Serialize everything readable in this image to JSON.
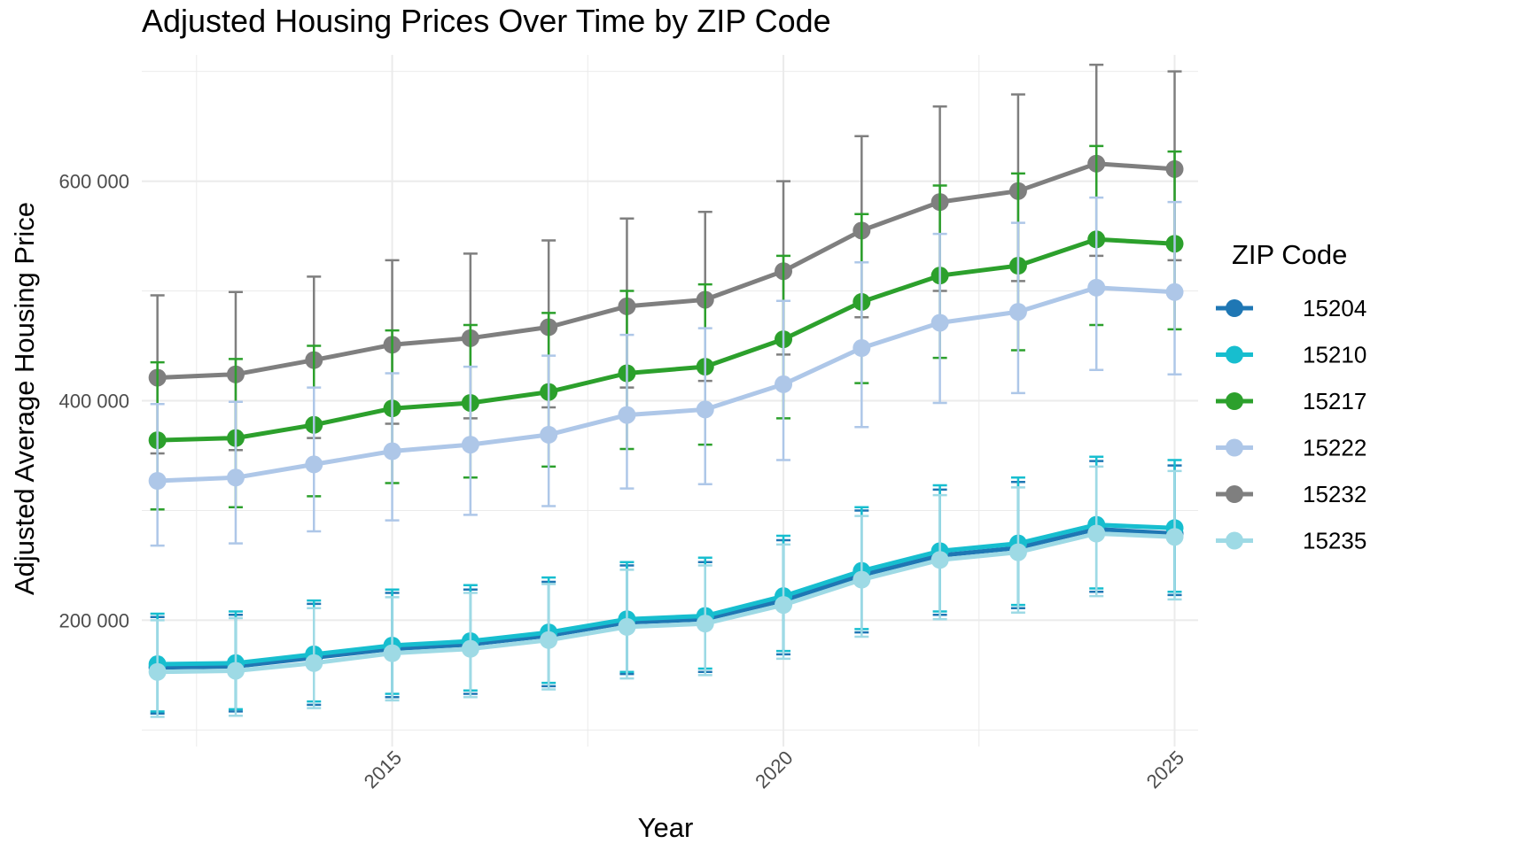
{
  "chart_data": {
    "type": "line",
    "title": "Adjusted Housing Prices Over Time by ZIP Code",
    "xlabel": "Year",
    "ylabel": "Adjusted Average Housing Price",
    "xlim": [
      2011.8,
      2025.3
    ],
    "ylim": [
      85000,
      715000
    ],
    "x_ticks": [
      2015,
      2020,
      2025
    ],
    "x_tick_labels": [
      "2015",
      "2020",
      "2025"
    ],
    "y_ticks": [
      200000,
      400000,
      600000
    ],
    "y_tick_labels": [
      "200 000",
      "400 000",
      "600 000"
    ],
    "grid": true,
    "legend": {
      "title": "ZIP Code",
      "position": "right"
    },
    "x": [
      2012,
      2013,
      2014,
      2015,
      2016,
      2017,
      2018,
      2019,
      2020,
      2021,
      2022,
      2023,
      2024,
      2025
    ],
    "series": [
      {
        "name": "15204",
        "color": "#1f77b4",
        "values": [
          157000,
          158000,
          166000,
          174000,
          178000,
          186000,
          198000,
          201000,
          218000,
          241000,
          259000,
          266000,
          283000,
          279000
        ],
        "error_low": [
          115000,
          117000,
          123000,
          130000,
          133000,
          140000,
          151000,
          153000,
          169000,
          189000,
          205000,
          211000,
          226000,
          223000
        ],
        "error_high": [
          203000,
          205000,
          215000,
          225000,
          228000,
          235000,
          250000,
          253000,
          273000,
          300000,
          319000,
          326000,
          345000,
          341000
        ]
      },
      {
        "name": "15210",
        "color": "#17becf",
        "values": [
          160000,
          161000,
          169000,
          177000,
          181000,
          189000,
          201000,
          204000,
          222000,
          245000,
          263000,
          270000,
          287000,
          284000
        ],
        "error_low": [
          117000,
          119000,
          126000,
          133000,
          136000,
          143000,
          153000,
          156000,
          172000,
          192000,
          208000,
          214000,
          229000,
          226000
        ],
        "error_high": [
          206000,
          208000,
          218000,
          228000,
          232000,
          239000,
          253000,
          257000,
          277000,
          303000,
          323000,
          330000,
          349000,
          346000
        ]
      },
      {
        "name": "15217",
        "color": "#2ca02c",
        "values": [
          364000,
          366000,
          378000,
          393000,
          398000,
          408000,
          425000,
          431000,
          456000,
          490000,
          514000,
          523000,
          547000,
          543000
        ],
        "error_low": [
          301000,
          303000,
          313000,
          325000,
          330000,
          340000,
          356000,
          360000,
          384000,
          416000,
          439000,
          446000,
          469000,
          465000
        ],
        "error_high": [
          435000,
          438000,
          450000,
          464000,
          469000,
          480000,
          500000,
          506000,
          532000,
          570000,
          596000,
          607000,
          632000,
          627000
        ]
      },
      {
        "name": "15222",
        "color": "#aec7e8",
        "values": [
          327000,
          330000,
          342000,
          354000,
          360000,
          369000,
          387000,
          392000,
          415000,
          448000,
          471000,
          481000,
          503000,
          499000
        ],
        "error_low": [
          268000,
          270000,
          281000,
          291000,
          296000,
          304000,
          320000,
          324000,
          346000,
          376000,
          398000,
          407000,
          428000,
          424000
        ],
        "error_high": [
          397000,
          399000,
          412000,
          425000,
          431000,
          441000,
          460000,
          466000,
          491000,
          526000,
          552000,
          562000,
          585000,
          581000
        ]
      },
      {
        "name": "15232",
        "color": "#7f7f7f",
        "values": [
          421000,
          424000,
          437000,
          451000,
          457000,
          467000,
          486000,
          492000,
          518000,
          555000,
          581000,
          591000,
          616000,
          611000
        ],
        "error_low": [
          352000,
          355000,
          366000,
          379000,
          384000,
          394000,
          412000,
          418000,
          442000,
          476000,
          500000,
          509000,
          532000,
          528000
        ],
        "error_high": [
          496000,
          499000,
          513000,
          528000,
          534000,
          546000,
          566000,
          572000,
          600000,
          641000,
          668000,
          679000,
          706000,
          700000
        ]
      },
      {
        "name": "15235",
        "color": "#9edae5",
        "values": [
          153000,
          154000,
          161000,
          170000,
          174000,
          182000,
          194000,
          197000,
          214000,
          237000,
          255000,
          262000,
          279000,
          276000
        ],
        "error_low": [
          112000,
          113000,
          120000,
          127000,
          130000,
          137000,
          147000,
          150000,
          165000,
          185000,
          201000,
          207000,
          222000,
          219000
        ],
        "error_high": [
          200000,
          202000,
          211000,
          221000,
          225000,
          233000,
          246000,
          250000,
          269000,
          295000,
          314000,
          321000,
          340000,
          336000
        ]
      }
    ]
  }
}
